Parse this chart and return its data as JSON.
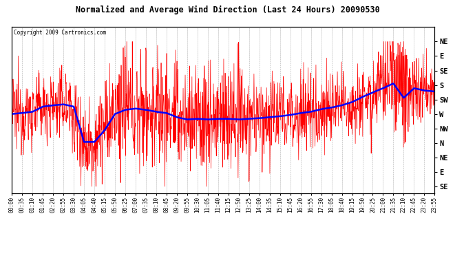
{
  "title": "Normalized and Average Wind Direction (Last 24 Hours) 20090530",
  "copyright_text": "Copyright 2009 Cartronics.com",
  "background_color": "#ffffff",
  "plot_bg_color": "#ffffff",
  "grid_color": "#999999",
  "red_color": "#ff0000",
  "blue_color": "#0000ff",
  "y_tick_labels_right": [
    "SE",
    "E",
    "NE",
    "N",
    "NW",
    "W",
    "SW",
    "S",
    "SE",
    "E",
    "NE"
  ],
  "y_tick_values": [
    0,
    45,
    90,
    135,
    180,
    225,
    270,
    315,
    360,
    405,
    450
  ],
  "ylim": [
    -22,
    495
  ],
  "x_tick_labels": [
    "00:00",
    "00:35",
    "01:10",
    "01:45",
    "02:20",
    "02:55",
    "03:30",
    "04:05",
    "04:40",
    "05:15",
    "05:50",
    "06:25",
    "07:00",
    "07:35",
    "08:10",
    "08:45",
    "09:20",
    "09:55",
    "10:30",
    "11:05",
    "11:40",
    "12:15",
    "12:50",
    "13:25",
    "14:00",
    "14:35",
    "15:10",
    "15:45",
    "16:20",
    "16:55",
    "17:30",
    "18:05",
    "18:40",
    "19:15",
    "19:50",
    "20:25",
    "21:00",
    "21:35",
    "22:10",
    "22:45",
    "23:20",
    "23:55"
  ],
  "n_points": 1440,
  "figsize": [
    6.9,
    3.75
  ],
  "dpi": 100
}
